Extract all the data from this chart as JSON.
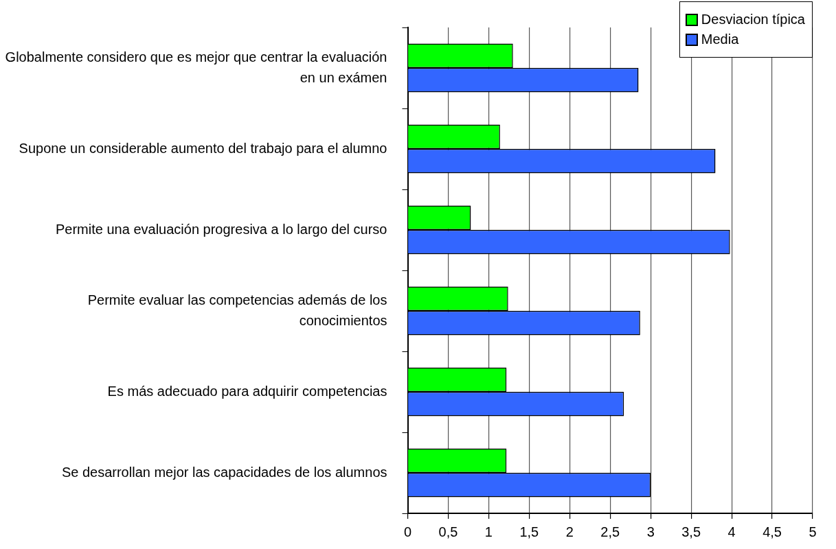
{
  "chart_data": {
    "type": "bar",
    "orientation": "horizontal",
    "categories": [
      "Globalmente considero que es mejor que centrar la evaluación en un exámen",
      "Supone un considerable aumento del trabajo para el alumno",
      "Permite una evaluación progresiva a lo largo del curso",
      "Permite evaluar las competencias además de los conocimientos",
      "Es más adecuado para adquirir competencias",
      "Se desarrollan mejor las capacidades de los alumnos"
    ],
    "series": [
      {
        "name": "Desviacion típica",
        "color": "#00ff00",
        "values": [
          1.3,
          1.14,
          0.78,
          1.24,
          1.22,
          1.22
        ]
      },
      {
        "name": "Media",
        "color": "#3366ff",
        "values": [
          2.85,
          3.8,
          3.98,
          2.87,
          2.67,
          3.0
        ]
      }
    ],
    "xlim": [
      0,
      5
    ],
    "xticks": [
      0,
      {
        "value": 0.5,
        "label": "0,5"
      },
      1,
      {
        "value": 1.5,
        "label": "1,5"
      },
      2,
      {
        "value": 2.5,
        "label": "2,5"
      },
      3,
      {
        "value": 3.5,
        "label": "3,5"
      },
      4,
      {
        "value": 4.5,
        "label": "4,5"
      },
      5
    ],
    "grid": "x",
    "legend": "top right"
  }
}
